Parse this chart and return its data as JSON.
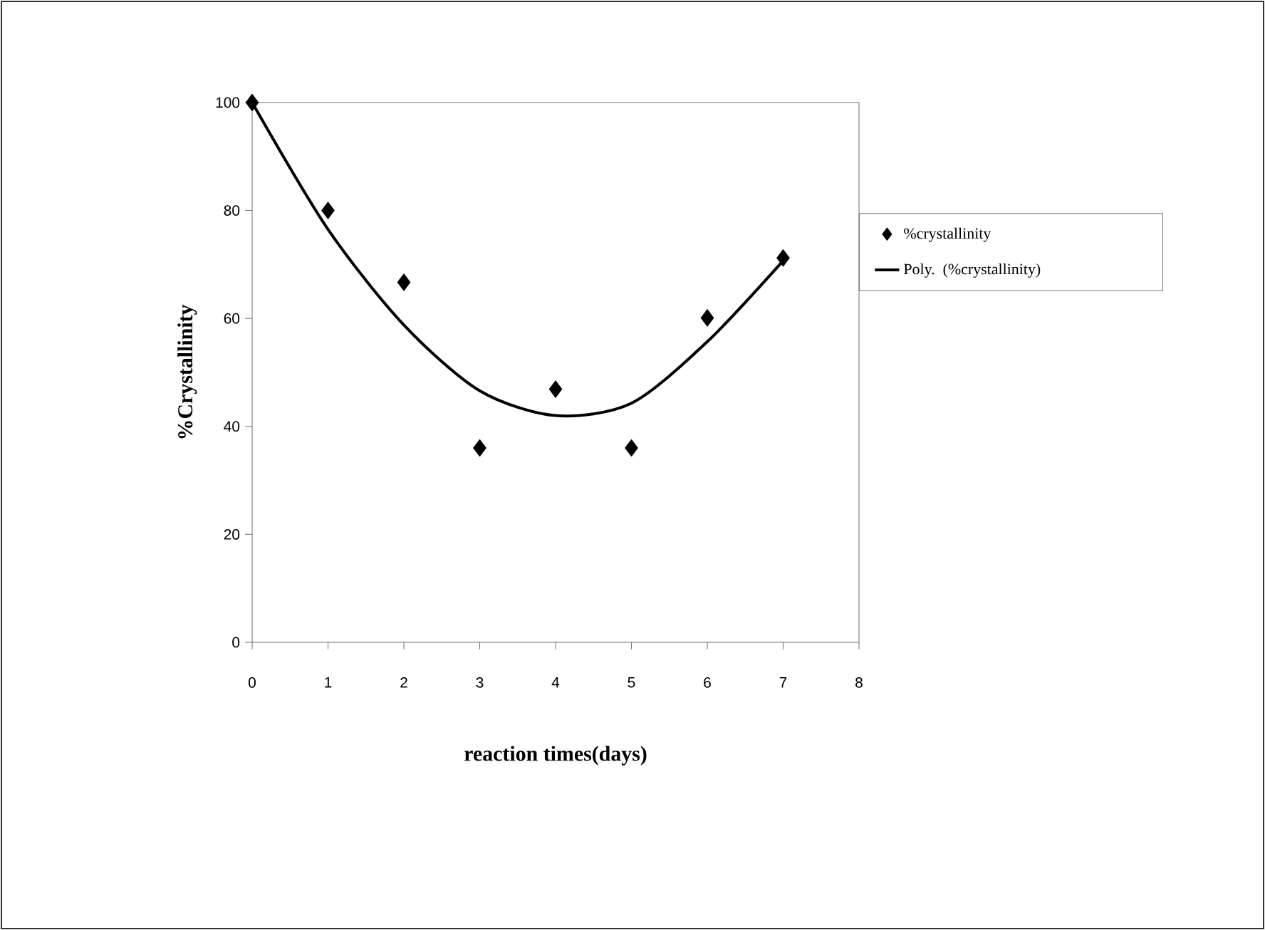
{
  "chart_data": {
    "type": "scatter",
    "xlabel": "reaction times(days)",
    "ylabel": "%Crystallinity",
    "xlim": [
      0,
      8
    ],
    "xticks": [
      0,
      1,
      2,
      3,
      4,
      5,
      6,
      7,
      8
    ],
    "ylim": [
      0,
      100
    ],
    "yticks": [
      0,
      20,
      40,
      60,
      80,
      100
    ],
    "legend": "right",
    "grid": false,
    "series": [
      {
        "name": "%crystallinity",
        "marker": "diamond",
        "color": "#000000",
        "x": [
          0,
          1,
          2,
          3,
          4,
          5,
          6,
          7
        ],
        "values": [
          100,
          80,
          66.7,
          36,
          46.9,
          36,
          60.1,
          71.2
        ]
      },
      {
        "name": "Poly. (%crystallinity)",
        "type": "line",
        "marker": "none",
        "line_style": "solid",
        "color": "#000000",
        "x": [
          0,
          1,
          2,
          3,
          4,
          5,
          6,
          7
        ],
        "values": [
          100,
          76.5,
          58.8,
          46.6,
          42,
          44.3,
          55.7,
          70.7
        ]
      }
    ]
  }
}
